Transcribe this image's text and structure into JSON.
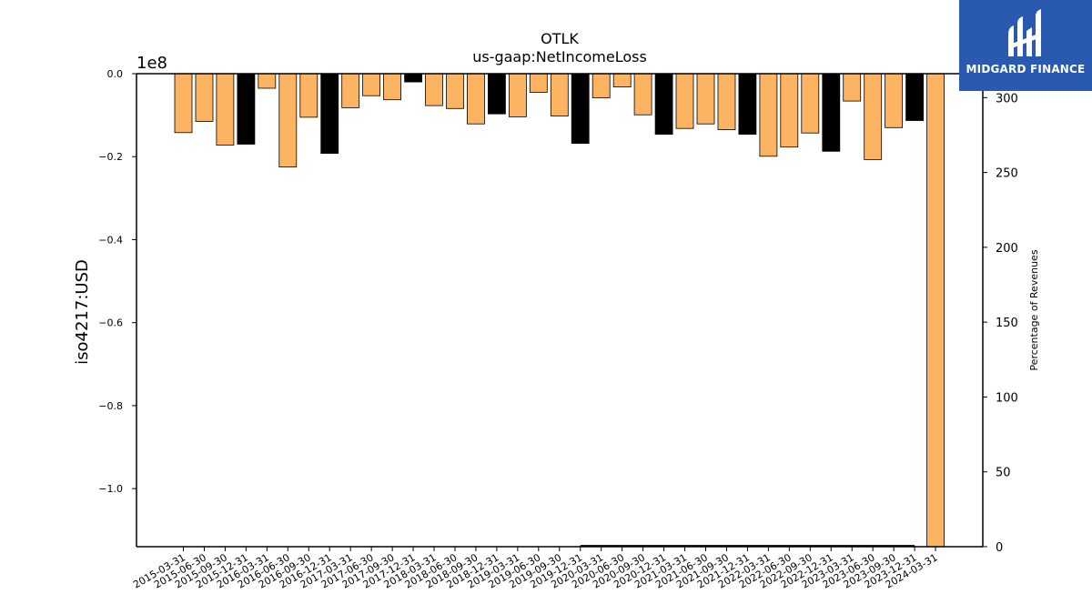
{
  "brand": {
    "name": "MIDGARD FINANCE",
    "colors": {
      "background": "#2a59b0",
      "text": "#ffffff"
    }
  },
  "chart_data": {
    "type": "bar",
    "title": "OTLK",
    "subtitle": "us-gaap:NetIncomeLoss",
    "ylabel": "iso4217:USD",
    "y_offset_label": "1e8",
    "y2label": "Percentage of Revenues",
    "ylim": [
      -1.14,
      0
    ],
    "y_ticks": [
      {
        "value": 0.0,
        "label": "0.0"
      },
      {
        "value": -0.2,
        "label": "−0.2"
      },
      {
        "value": -0.4,
        "label": "−0.4"
      },
      {
        "value": -0.6,
        "label": "−0.6"
      },
      {
        "value": -0.8,
        "label": "−0.8"
      },
      {
        "value": -1.0,
        "label": "−1.0"
      }
    ],
    "y2lim": [
      0,
      316
    ],
    "y2_ticks": [
      {
        "value": 0,
        "label": "0"
      },
      {
        "value": 50,
        "label": "50"
      },
      {
        "value": 100,
        "label": "100"
      },
      {
        "value": 150,
        "label": "150"
      },
      {
        "value": 200,
        "label": "200"
      },
      {
        "value": 250,
        "label": "250"
      },
      {
        "value": 300,
        "label": "300"
      }
    ],
    "colors": {
      "quarter": "#fdb462",
      "year_end": "#000000",
      "edge": "#000000"
    },
    "categories": [
      "2015-03-31",
      "2015-06-30",
      "2015-09-30",
      "2015-12-31",
      "2016-03-31",
      "2016-06-30",
      "2016-09-30",
      "2016-12-31",
      "2017-03-31",
      "2017-06-30",
      "2017-09-30",
      "2017-12-31",
      "2018-03-31",
      "2018-06-30",
      "2018-09-30",
      "2018-12-31",
      "2019-03-31",
      "2019-06-30",
      "2019-09-30",
      "2019-12-31",
      "2020-03-31",
      "2020-06-30",
      "2020-09-30",
      "2020-12-31",
      "2021-03-31",
      "2021-06-30",
      "2021-09-30",
      "2021-12-31",
      "2022-03-31",
      "2022-06-30",
      "2022-09-30",
      "2022-12-31",
      "2023-03-31",
      "2023-06-30",
      "2023-09-30",
      "2023-12-31",
      "2024-03-31"
    ],
    "values": [
      -0.142,
      -0.115,
      -0.172,
      -0.17,
      -0.035,
      -0.225,
      -0.105,
      -0.192,
      -0.082,
      -0.053,
      -0.063,
      -0.02,
      -0.077,
      -0.084,
      -0.121,
      -0.097,
      -0.104,
      -0.045,
      -0.102,
      -0.168,
      -0.058,
      -0.032,
      -0.099,
      -0.146,
      -0.132,
      -0.121,
      -0.135,
      -0.146,
      -0.199,
      -0.177,
      -0.143,
      -0.187,
      -0.066,
      -0.207,
      -0.13,
      -0.113,
      -1.14
    ],
    "year_end": [
      false,
      false,
      false,
      true,
      false,
      false,
      false,
      true,
      false,
      false,
      false,
      true,
      false,
      false,
      false,
      true,
      false,
      false,
      false,
      true,
      false,
      false,
      false,
      true,
      false,
      false,
      false,
      true,
      false,
      false,
      false,
      true,
      false,
      false,
      false,
      true,
      false
    ],
    "pct_of_revenue_line": {
      "x_start": "2019-12-31",
      "x_end": "2023-12-31",
      "value": 0.5
    }
  }
}
